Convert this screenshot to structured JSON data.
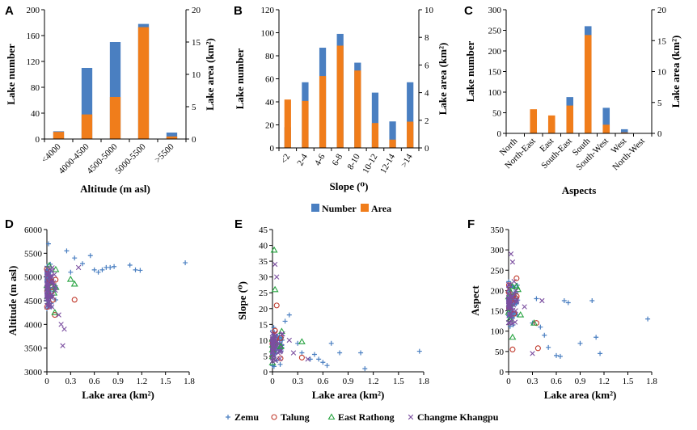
{
  "colors": {
    "number": "#4a7fc1",
    "area": "#f07d1b",
    "zemu": "#4a7fc1",
    "talung": "#c0392b",
    "east_rathong": "#27a340",
    "changme": "#7b4fa0"
  },
  "legend_top": {
    "number": "Number",
    "area": "Area"
  },
  "legend_bottom": {
    "zemu": "Zemu",
    "talung": "Talung",
    "east_rathong": "East Rathong",
    "changme": "Changme Khangpu"
  },
  "chart_data": [
    {
      "id": "A",
      "type": "bar",
      "panel_label": "A",
      "xlabel": "Altitude (m asl)",
      "ylabel_left": "Lake number",
      "ylabel_right": "Lake area (km²)",
      "categories": [
        "<4000",
        "4000-4500",
        "4500-5000",
        "5000-5500",
        ">5500"
      ],
      "left_ticks": [
        "0",
        "40",
        "80",
        "120",
        "160",
        "200"
      ],
      "right_ticks": [
        "0",
        "5",
        "10",
        "15",
        "20"
      ],
      "ylim_left": [
        0,
        200
      ],
      "ylim_right": [
        0,
        20
      ],
      "series": [
        {
          "name": "Number",
          "values": [
            12,
            110,
            150,
            178,
            10
          ]
        },
        {
          "name": "Area",
          "values": [
            1.1,
            3.8,
            6.5,
            17.3,
            0.4
          ]
        }
      ]
    },
    {
      "id": "B",
      "type": "bar",
      "panel_label": "B",
      "xlabel": "Slope (⁰)",
      "ylabel_left": "Lake number",
      "ylabel_right": "Lake area (km²)",
      "categories": [
        "<2",
        "2-4",
        "4-6",
        "6-8",
        "8-10",
        "10-12",
        "12-14",
        ">14"
      ],
      "left_ticks": [
        "0",
        "20",
        "40",
        "60",
        "80",
        "100",
        "120"
      ],
      "right_ticks": [
        "0",
        "2",
        "4",
        "6",
        "8",
        "10"
      ],
      "ylim_left": [
        0,
        120
      ],
      "ylim_right": [
        0,
        10
      ],
      "series": [
        {
          "name": "Number",
          "values": [
            18,
            57,
            87,
            99,
            74,
            48,
            23,
            57
          ]
        },
        {
          "name": "Area",
          "values": [
            3.5,
            3.4,
            5.2,
            7.4,
            5.6,
            1.8,
            0.6,
            1.9
          ]
        }
      ]
    },
    {
      "id": "C",
      "type": "bar",
      "panel_label": "C",
      "xlabel": "Aspects",
      "ylabel_left": "Lake number",
      "ylabel_right": "Lake area (km²)",
      "categories": [
        "North",
        "North-East",
        "East",
        "South-East",
        "South",
        "South-West",
        "West",
        "North-West"
      ],
      "left_ticks": [
        "0",
        "50",
        "100",
        "150",
        "200",
        "250",
        "300"
      ],
      "right_ticks": [
        "0",
        "5",
        "10",
        "15",
        "20"
      ],
      "ylim_left": [
        0,
        300
      ],
      "ylim_right": [
        0,
        20
      ],
      "series": [
        {
          "name": "Number",
          "values": [
            0,
            5,
            28,
            88,
            260,
            62,
            10,
            0
          ]
        },
        {
          "name": "Area",
          "values": [
            0,
            3.9,
            2.9,
            4.5,
            15.9,
            1.4,
            0.15,
            0
          ]
        }
      ]
    },
    {
      "id": "D",
      "type": "scatter",
      "panel_label": "D",
      "xlabel": "Lake area (km²)",
      "ylabel": "Altitude (m asl)",
      "xlim": [
        0,
        1.8
      ],
      "ylim": [
        3000,
        6000
      ],
      "x_ticks": [
        "0",
        "0.3",
        "0.6",
        "0.9",
        "1.2",
        "1.5",
        "1.8"
      ],
      "y_ticks": [
        "3000",
        "3500",
        "4000",
        "4500",
        "5000",
        "5500",
        "6000"
      ],
      "series": [
        {
          "name": "Zemu",
          "points": [
            [
              0.55,
              5450
            ],
            [
              0.6,
              5150
            ],
            [
              0.65,
              5100
            ],
            [
              0.7,
              5150
            ],
            [
              0.75,
              5200
            ],
            [
              0.8,
              5200
            ],
            [
              0.85,
              5220
            ],
            [
              1.05,
              5250
            ],
            [
              1.12,
              5150
            ],
            [
              1.18,
              5140
            ],
            [
              1.75,
              5300
            ],
            [
              0.45,
              5280
            ],
            [
              0.3,
              5100
            ],
            [
              0.35,
              5400
            ],
            [
              0.25,
              5550
            ],
            [
              0.02,
              5700
            ]
          ]
        },
        {
          "name": "Talung",
          "points": [
            [
              0.35,
              4520
            ],
            [
              0.1,
              4200
            ]
          ]
        },
        {
          "name": "East Rathong",
          "points": [
            [
              0.35,
              4850
            ],
            [
              0.3,
              4950
            ],
            [
              0.1,
              4250
            ]
          ]
        },
        {
          "name": "Changme Khangpu",
          "points": [
            [
              0.4,
              5200
            ],
            [
              0.2,
              3550
            ],
            [
              0.22,
              3900
            ],
            [
              0.18,
              4000
            ],
            [
              0.15,
              4200
            ],
            [
              0.05,
              4600
            ]
          ]
        }
      ]
    },
    {
      "id": "E",
      "type": "scatter",
      "panel_label": "E",
      "xlabel": "Lake area (km²)",
      "ylabel": "Slope (⁰)",
      "xlim": [
        0,
        1.8
      ],
      "ylim": [
        0,
        45
      ],
      "x_ticks": [
        "0",
        "0.3",
        "0.6",
        "0.9",
        "1.2",
        "1.5",
        "1.8"
      ],
      "y_ticks": [
        "0",
        "5",
        "10",
        "15",
        "20",
        "25",
        "30",
        "35",
        "40",
        "45"
      ],
      "series": [
        {
          "name": "Zemu",
          "points": [
            [
              0.5,
              5.5
            ],
            [
              0.55,
              4
            ],
            [
              0.6,
              3
            ],
            [
              0.65,
              2
            ],
            [
              0.7,
              9
            ],
            [
              0.8,
              6
            ],
            [
              1.05,
              6
            ],
            [
              1.1,
              1
            ],
            [
              1.75,
              6.5
            ],
            [
              0.3,
              9
            ],
            [
              0.35,
              6
            ],
            [
              0.45,
              4
            ],
            [
              0.15,
              16
            ],
            [
              0.2,
              18
            ]
          ]
        },
        {
          "name": "Talung",
          "points": [
            [
              0.35,
              4.5
            ],
            [
              0.05,
              21
            ],
            [
              0.03,
              13
            ]
          ]
        },
        {
          "name": "East Rathong",
          "points": [
            [
              0.02,
              38.5
            ],
            [
              0.03,
              26
            ],
            [
              0.35,
              9.5
            ],
            [
              0.1,
              8
            ]
          ]
        },
        {
          "name": "Changme Khangpu",
          "points": [
            [
              0.42,
              4
            ],
            [
              0.25,
              6
            ],
            [
              0.03,
              34
            ],
            [
              0.05,
              30
            ],
            [
              0.2,
              10
            ],
            [
              0.12,
              12
            ]
          ]
        }
      ]
    },
    {
      "id": "F",
      "type": "scatter",
      "panel_label": "F",
      "xlabel": "Lake area (km²)",
      "ylabel": "Aspect",
      "xlim": [
        0,
        1.8
      ],
      "ylim": [
        0,
        350
      ],
      "x_ticks": [
        "0",
        "0.3",
        "0.6",
        "0.9",
        "1.2",
        "1.5",
        "1.8"
      ],
      "y_ticks": [
        "0",
        "50",
        "100",
        "150",
        "200",
        "250",
        "300",
        "350"
      ],
      "series": [
        {
          "name": "Zemu",
          "points": [
            [
              0.6,
              40
            ],
            [
              0.65,
              38
            ],
            [
              0.7,
              175
            ],
            [
              0.75,
              170
            ],
            [
              0.9,
              70
            ],
            [
              1.05,
              175
            ],
            [
              1.1,
              85
            ],
            [
              1.15,
              45
            ],
            [
              1.75,
              130
            ],
            [
              0.5,
              60
            ],
            [
              0.45,
              90
            ],
            [
              0.3,
              120
            ],
            [
              0.35,
              180
            ],
            [
              0.4,
              110
            ]
          ]
        },
        {
          "name": "Talung",
          "points": [
            [
              0.35,
              120
            ],
            [
              0.37,
              58
            ],
            [
              0.05,
              55
            ],
            [
              0.1,
              230
            ]
          ]
        },
        {
          "name": "East Rathong",
          "points": [
            [
              0.32,
              120
            ],
            [
              0.1,
              210
            ],
            [
              0.05,
              85
            ],
            [
              0.15,
              140
            ]
          ]
        },
        {
          "name": "Changme Khangpu",
          "points": [
            [
              0.42,
              175
            ],
            [
              0.3,
              45
            ],
            [
              0.03,
              290
            ],
            [
              0.05,
              270
            ],
            [
              0.2,
              160
            ]
          ]
        }
      ]
    }
  ]
}
